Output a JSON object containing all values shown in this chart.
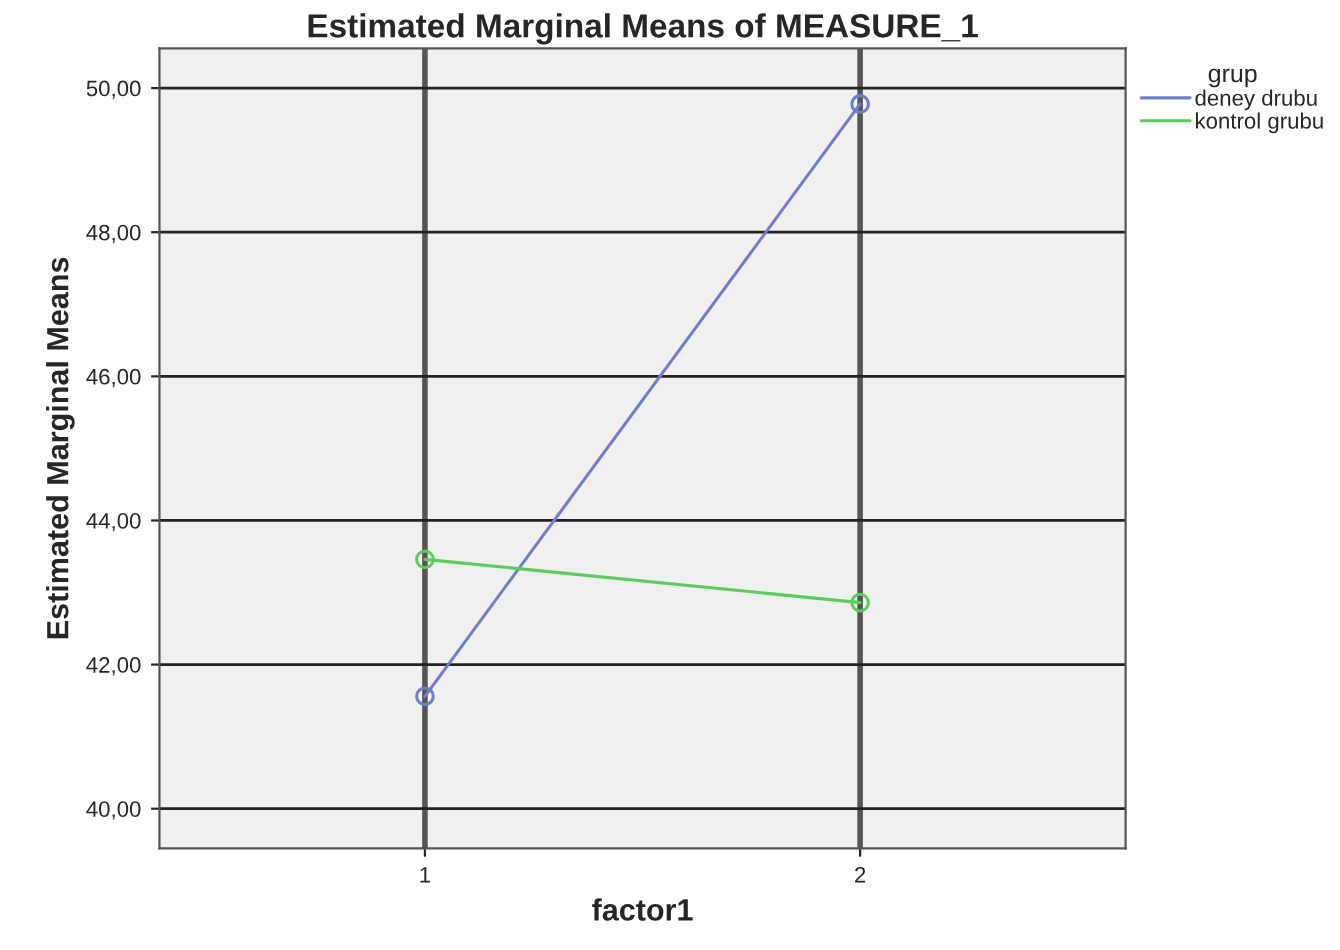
{
  "chart_data": {
    "type": "line",
    "title": "Estimated Marginal Means of MEASURE_1",
    "xlabel": "factor1",
    "ylabel": "Estimated Marginal Means",
    "legend_title": "grup",
    "x": [
      1,
      2
    ],
    "xlim": [
      0.39,
      2.61
    ],
    "xticks": [
      1,
      2
    ],
    "ylim": [
      39.45,
      50.55
    ],
    "yticks": [
      {
        "value": 40,
        "label": "40,00"
      },
      {
        "value": 42,
        "label": "42,00"
      },
      {
        "value": 44,
        "label": "44,00"
      },
      {
        "value": 46,
        "label": "46,00"
      },
      {
        "value": 48,
        "label": "48,00"
      },
      {
        "value": 50,
        "label": "50,00"
      }
    ],
    "series": [
      {
        "name": "deney drubu",
        "color": "#6f7fc6",
        "values": [
          41.56,
          49.78
        ]
      },
      {
        "name": "kontrol grubu",
        "color": "#5ccc5c",
        "values": [
          43.46,
          42.86
        ]
      }
    ],
    "marker": "circle",
    "line_style": "solid",
    "grid": true,
    "legend": "top right"
  }
}
